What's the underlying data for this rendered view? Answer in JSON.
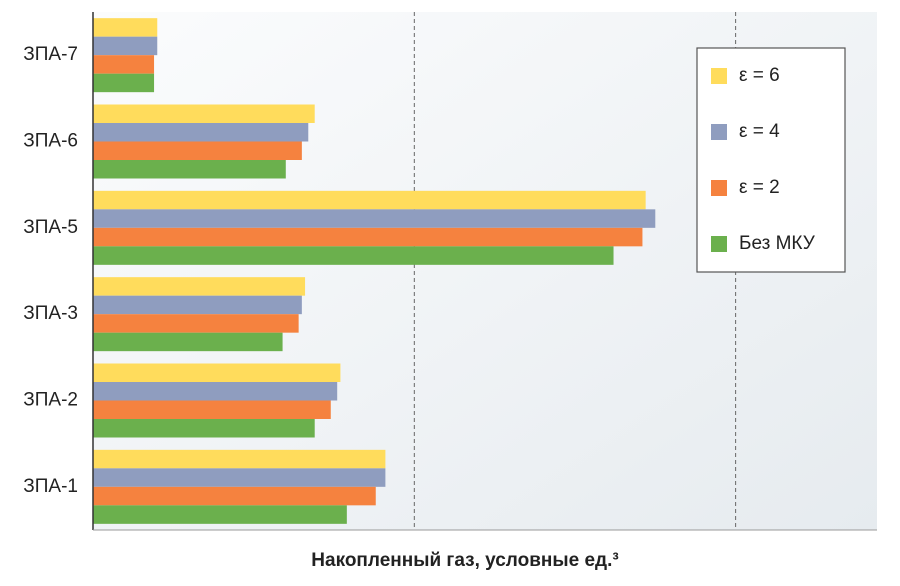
{
  "chart_data": {
    "type": "hbar",
    "xlabel": "Накопленный газ, условные ед.³",
    "categories": [
      "ЗПА-7",
      "ЗПА-6",
      "ЗПА-5",
      "ЗПА-3",
      "ЗПА-2",
      "ЗПА-1"
    ],
    "series": [
      {
        "name": "ε = 6",
        "color": "#ffdc5c",
        "values": [
          0.2,
          0.69,
          1.72,
          0.66,
          0.77,
          0.91
        ]
      },
      {
        "name": "ε = 4",
        "color": "#8f9dbf",
        "values": [
          0.2,
          0.67,
          1.75,
          0.65,
          0.76,
          0.91
        ]
      },
      {
        "name": "ε = 2",
        "color": "#f5823f",
        "values": [
          0.19,
          0.65,
          1.71,
          0.64,
          0.74,
          0.88
        ]
      },
      {
        "name": "Без МКУ",
        "color": "#6bb04d",
        "values": [
          0.19,
          0.6,
          1.62,
          0.59,
          0.69,
          0.79
        ]
      }
    ],
    "xlim": [
      0,
      2.44
    ],
    "xticks": [
      1,
      2
    ],
    "grid": true,
    "legend": "top-right"
  }
}
